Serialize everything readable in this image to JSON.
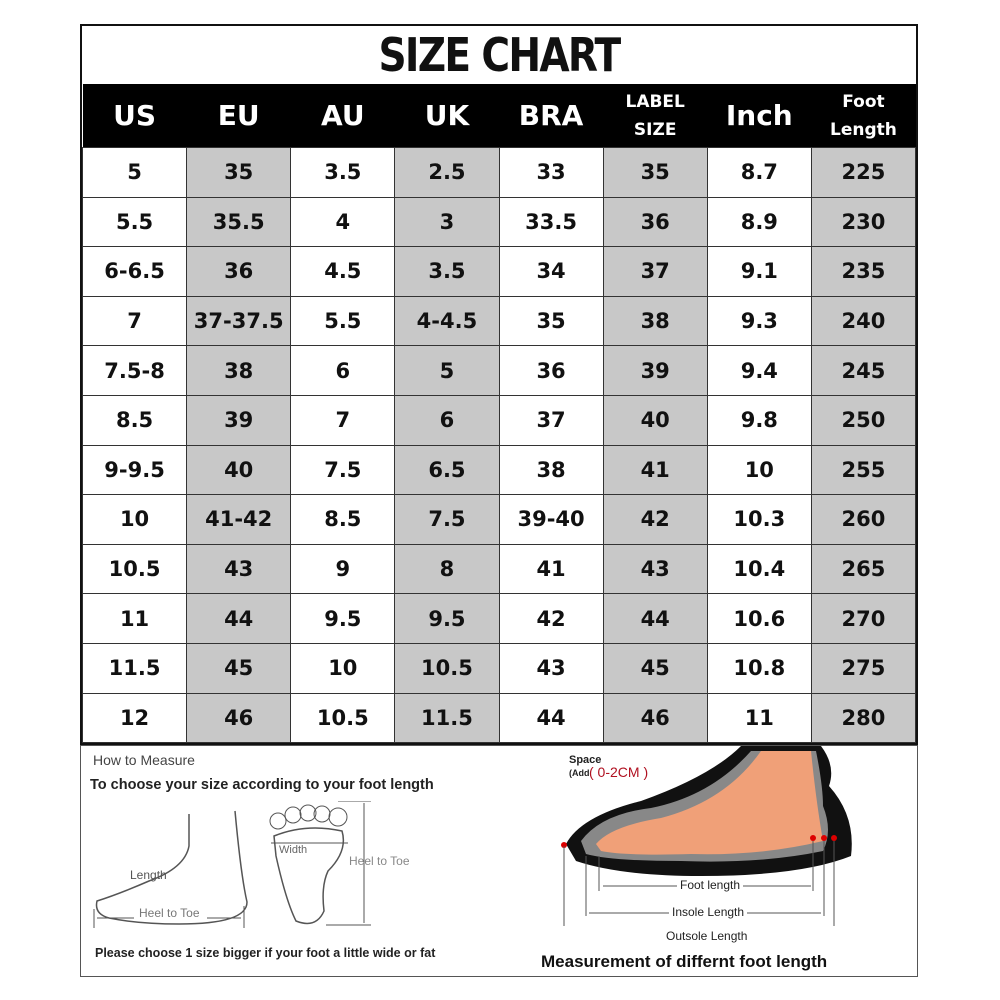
{
  "title": "SIZE CHART",
  "headers": [
    "US",
    "EU",
    "AU",
    "UK",
    "BRA",
    [
      "LABEL",
      "SIZE"
    ],
    "Inch",
    [
      "Foot",
      "Length"
    ]
  ],
  "rows": [
    [
      "5",
      "35",
      "3.5",
      "2.5",
      "33",
      "35",
      "8.7",
      "225"
    ],
    [
      "5.5",
      "35.5",
      "4",
      "3",
      "33.5",
      "36",
      "8.9",
      "230"
    ],
    [
      "6-6.5",
      "36",
      "4.5",
      "3.5",
      "34",
      "37",
      "9.1",
      "235"
    ],
    [
      "7",
      "37-37.5",
      "5.5",
      "4-4.5",
      "35",
      "38",
      "9.3",
      "240"
    ],
    [
      "7.5-8",
      "38",
      "6",
      "5",
      "36",
      "39",
      "9.4",
      "245"
    ],
    [
      "8.5",
      "39",
      "7",
      "6",
      "37",
      "40",
      "9.8",
      "250"
    ],
    [
      "9-9.5",
      "40",
      "7.5",
      "6.5",
      "38",
      "41",
      "10",
      "255"
    ],
    [
      "10",
      "41-42",
      "8.5",
      "7.5",
      "39-40",
      "42",
      "10.3",
      "260"
    ],
    [
      "10.5",
      "43",
      "9",
      "8",
      "41",
      "43",
      "10.4",
      "265"
    ],
    [
      "11",
      "44",
      "9.5",
      "9.5",
      "42",
      "44",
      "10.6",
      "270"
    ],
    [
      "11.5",
      "45",
      "10",
      "10.5",
      "43",
      "45",
      "10.8",
      "275"
    ],
    [
      "12",
      "46",
      "10.5",
      "11.5",
      "44",
      "46",
      "11",
      "280"
    ]
  ],
  "shaded_color": "#c8c8c8",
  "measure": {
    "heading": "How to Measure",
    "subtitle": "To choose your size according to your foot length",
    "length_label": "Length",
    "heel_to_toe": "Heel to Toe",
    "width_label": "Width",
    "note": "Please choose 1 size bigger if your foot a little wide or fat",
    "space_label": "Space",
    "add_label": "(Add",
    "space_value": "( 0-2CM )",
    "foot_length": "Foot length",
    "insole_length": "Insole Length",
    "outsole_length": "Outsole Length",
    "caption": "Measurement of differnt foot length"
  }
}
